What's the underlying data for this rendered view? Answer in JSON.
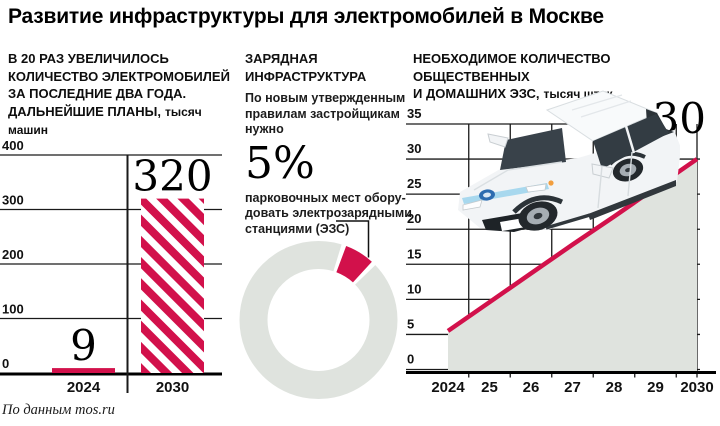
{
  "page_title": "Развитие инфраструктуры для электромобилей в Москве",
  "source_note": "По данным mos.ru",
  "palette": {
    "accent_red": "#d2114b",
    "area_fill": "#dfe3de",
    "grid": "#1a1a1a"
  },
  "left_section": {
    "heading_lines": [
      "В 20 РАЗ УВЕЛИЧИЛОСЬ",
      "КОЛИЧЕСТВО ЭЛЕКТРОМОБИЛЕЙ",
      "ЗА ПОСЛЕДНИЕ ДВА ГОДА.",
      "ДАЛЬНЕЙШИЕ ПЛАНЫ,"
    ],
    "heading_unit": "тысяч машин"
  },
  "middle_section": {
    "heading_lines": [
      "ЗАРЯДНАЯ",
      "ИНФРАСТРУКТУРА"
    ],
    "body_lines": [
      "По новым утвержденным",
      "правилам застройщикам",
      "нужно"
    ],
    "big_value": "5%",
    "body2_lines": [
      "парковочных мест обору-",
      "довать электрозарядными",
      "станциями (ЭЗС)"
    ]
  },
  "right_section": {
    "heading_lines": [
      "НЕОБХОДИМОЕ КОЛИЧЕСТВО ОБЩЕСТВЕННЫХ",
      "И ДОМАШНИХ ЭЗС,"
    ],
    "heading_unit": "тысяч штук"
  },
  "chart_data": [
    {
      "id": "ev-count-bar",
      "type": "bar",
      "title": "В 20 раз увеличилось количество электромобилей за последние два года. Дальнейшие планы",
      "ylabel": "тысяч машин",
      "categories": [
        "2024",
        "2030"
      ],
      "values": [
        9,
        320
      ],
      "value_labels": [
        "9",
        "320"
      ],
      "bar_styles": [
        "solid",
        "diagonal-stripes"
      ],
      "ylim": [
        0,
        400
      ],
      "yticks": [
        0,
        100,
        200,
        300,
        400
      ]
    },
    {
      "id": "charging-share-donut",
      "type": "pie",
      "title": "Зарядная инфраструктура",
      "highlight_label": "5%",
      "slices": [
        {
          "label": "парковочные места с ЭЗС",
          "value": 5,
          "color": "#d2114b"
        },
        {
          "label": "",
          "value": 95,
          "color": "#dfe3de"
        }
      ]
    },
    {
      "id": "ezs-need-line",
      "type": "area",
      "title": "Необходимое количество общественных и домашних ЭЗС",
      "ylabel": "тысяч штук",
      "x": [
        "2024",
        "25",
        "26",
        "27",
        "28",
        "29",
        "2030"
      ],
      "values": [
        5.5,
        9.6,
        13.7,
        17.8,
        21.8,
        25.9,
        30
      ],
      "end_label": "30",
      "ylim": [
        0,
        35
      ],
      "yticks": [
        0,
        5,
        10,
        15,
        20,
        25,
        30,
        35
      ]
    }
  ]
}
